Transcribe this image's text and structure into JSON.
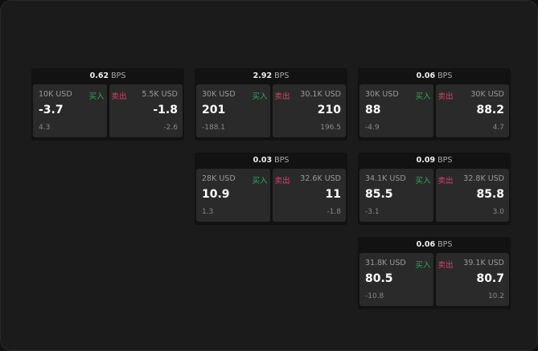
{
  "unit": "BPS",
  "buy_label": "买入",
  "sell_label": "卖出",
  "colors": {
    "buy": "#2eaa5a",
    "sell": "#d8436a"
  },
  "cards": [
    {
      "spread": "0.62",
      "buy": {
        "size": "10K USD",
        "price": "-3.7",
        "change": "4.3"
      },
      "sell": {
        "size": "5.5K USD",
        "price": "-1.8",
        "change": "-2.6"
      }
    },
    {
      "spread": "2.92",
      "buy": {
        "size": "30K USD",
        "price": "201",
        "change": "-188.1"
      },
      "sell": {
        "size": "30.1K USD",
        "price": "210",
        "change": "196.5"
      }
    },
    {
      "spread": "0.06",
      "buy": {
        "size": "30K USD",
        "price": "88",
        "change": "-4.9"
      },
      "sell": {
        "size": "30K USD",
        "price": "88.2",
        "change": "4.7"
      }
    },
    {
      "spread": "0.03",
      "buy": {
        "size": "28K USD",
        "price": "10.9",
        "change": "1.3"
      },
      "sell": {
        "size": "32.6K USD",
        "price": "11",
        "change": "-1.8"
      }
    },
    {
      "spread": "0.09",
      "buy": {
        "size": "34.1K USD",
        "price": "85.5",
        "change": "-3.1"
      },
      "sell": {
        "size": "32.8K USD",
        "price": "85.8",
        "change": "3.0"
      }
    },
    {
      "spread": "0.06",
      "buy": {
        "size": "31.8K USD",
        "price": "80.5",
        "change": "-10.8"
      },
      "sell": {
        "size": "39.1K USD",
        "price": "80.7",
        "change": "10.2"
      }
    }
  ]
}
